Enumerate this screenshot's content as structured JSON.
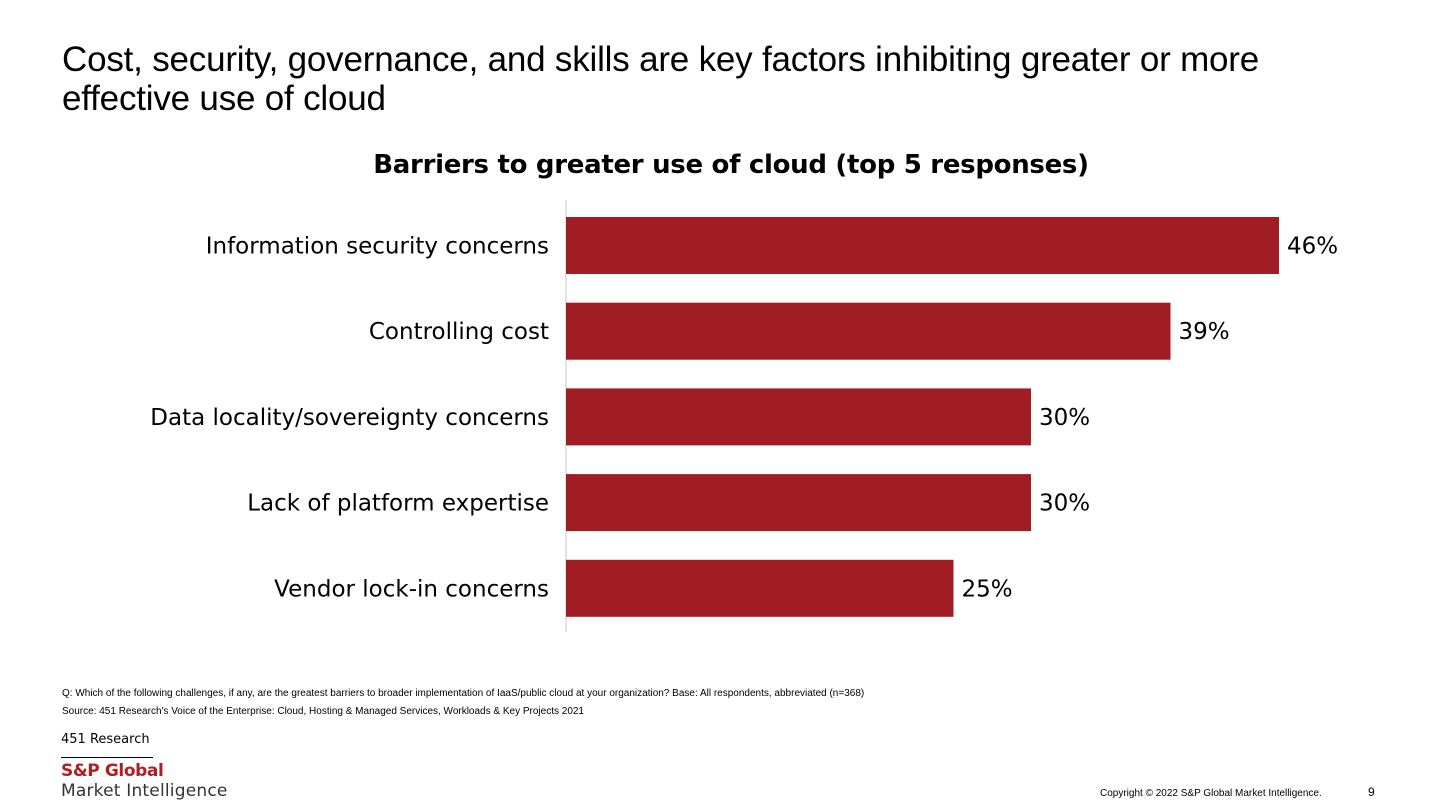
{
  "headline": "Cost, security, governance, and skills are key factors inhibiting greater or more effective use of cloud",
  "footer": {
    "question": "Q: Which of the following challenges, if any, are the greatest barriers to broader implementation of IaaS/public cloud at your organization?  Base: All respondents, abbreviated (n=368)",
    "source": "Source: 451 Research's Voice of the Enterprise: Cloud, Hosting & Managed Services, Workloads & Key Projects 2021",
    "brand_451": "451 Research",
    "brand_sp": "S&P Global",
    "brand_mi": "Market Intelligence",
    "copyright": "Copyright © 2022 S&P Global Market Intelligence.",
    "page_number": "9"
  },
  "colors": {
    "bar": "#a01d24",
    "axis": "#d9d9d9",
    "brand": "#b01e24"
  },
  "chart_data": {
    "type": "bar",
    "orientation": "horizontal",
    "title": "Barriers to greater use of cloud (top 5 responses)",
    "categories": [
      "Information security concerns",
      "Controlling cost",
      "Data locality/sovereignty concerns",
      "Lack of platform expertise",
      "Vendor lock-in concerns"
    ],
    "values": [
      46,
      39,
      30,
      30,
      25
    ],
    "value_labels": [
      "46%",
      "39%",
      "30%",
      "30%",
      "25%"
    ],
    "unit": "%",
    "xlim": [
      0,
      50
    ],
    "grid": false,
    "legend": "none"
  }
}
